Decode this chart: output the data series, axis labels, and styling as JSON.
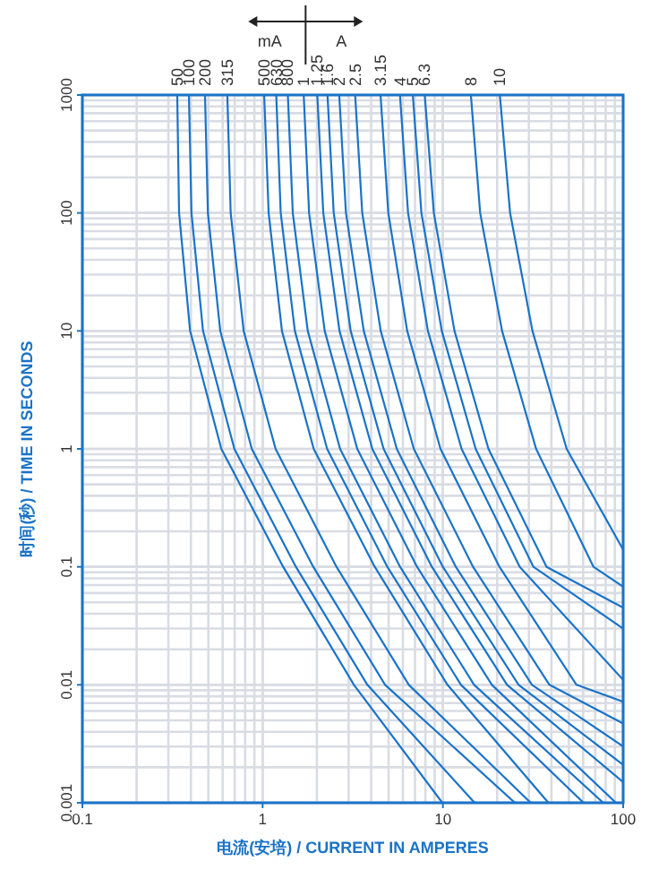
{
  "chart_data": {
    "type": "line",
    "xlabel": "电流(安培) / CURRENT IN AMPERES",
    "ylabel": "时间(秒) / TIME IN SECONDS",
    "log": "xy",
    "grid": true,
    "xlim": [
      0.1,
      100
    ],
    "ylim": [
      0.001,
      1000
    ],
    "xticks": [
      0.1,
      1,
      10,
      100
    ],
    "yticks": [
      0.001,
      0.01,
      0.1,
      1,
      10,
      100,
      1000
    ],
    "annotations": [
      "mA",
      "A"
    ],
    "series": [
      {
        "name": "50",
        "color": "#1a73c8",
        "x": [
          0.336,
          0.344,
          0.396,
          0.59,
          1.3,
          3.21,
          9.93
        ],
        "values": [
          1000,
          100,
          10,
          1,
          0.1,
          0.01,
          0.001
        ]
      },
      {
        "name": "100",
        "color": "#1a73c8",
        "x": [
          0.39,
          0.403,
          0.467,
          0.697,
          1.53,
          3.81,
          15.0
        ],
        "values": [
          1000,
          100,
          10,
          1,
          0.1,
          0.01,
          0.001
        ]
      },
      {
        "name": "200",
        "color": "#1a73c8",
        "x": [
          0.479,
          0.497,
          0.582,
          0.871,
          1.91,
          4.78,
          25.1
        ],
        "values": [
          1000,
          100,
          10,
          1,
          0.1,
          0.01,
          0.001
        ]
      },
      {
        "name": "315",
        "color": "#1a73c8",
        "x": [
          0.637,
          0.665,
          0.785,
          1.18,
          2.57,
          6.47,
          30.7
        ],
        "values": [
          1000,
          100,
          10,
          1,
          0.1,
          0.01,
          0.001
        ]
      },
      {
        "name": "500",
        "color": "#1a73c8",
        "x": [
          1.02,
          1.08,
          1.28,
          1.92,
          4.19,
          10.6,
          38.5
        ],
        "values": [
          1000,
          100,
          10,
          1,
          0.1,
          0.01,
          0.001
        ]
      },
      {
        "name": "630",
        "color": "#1a73c8",
        "x": [
          1.19,
          1.26,
          1.51,
          2.28,
          4.92,
          12.6,
          60.3
        ],
        "values": [
          1000,
          100,
          10,
          1,
          0.1,
          0.01,
          0.001
        ]
      },
      {
        "name": "800",
        "color": "#1a73c8",
        "x": [
          1.38,
          1.47,
          1.78,
          2.69,
          5.79,
          14.9,
          77.6
        ],
        "values": [
          1000,
          100,
          10,
          1,
          0.1,
          0.01,
          0.001
        ]
      },
      {
        "name": "1",
        "color": "#1a73c8",
        "x": [
          1.69,
          1.81,
          2.21,
          3.35,
          7.19,
          18.7,
          91.2
        ],
        "values": [
          1000,
          100,
          10,
          1,
          0.1,
          0.01,
          0.001
        ]
      },
      {
        "name": "1.25",
        "color": "#1a73c8",
        "x": [
          2.01,
          2.17,
          2.67,
          4.06,
          8.69,
          22.7,
          100
        ],
        "values": [
          1000,
          100,
          10,
          1,
          0.1,
          0.01,
          0.0015
        ]
      },
      {
        "name": "1.6",
        "color": "#1a73c8",
        "x": [
          2.29,
          2.48,
          3.08,
          4.69,
          10.0,
          26.3,
          100
        ],
        "values": [
          1000,
          100,
          10,
          1,
          0.1,
          0.01,
          0.0021
        ]
      },
      {
        "name": "2",
        "color": "#1a73c8",
        "x": [
          2.66,
          2.9,
          3.64,
          5.55,
          11.8,
          31.2,
          100
        ],
        "values": [
          1000,
          100,
          10,
          1,
          0.1,
          0.01,
          0.003
        ]
      },
      {
        "name": "2.5",
        "color": "#1a73c8",
        "x": [
          3.26,
          3.57,
          4.52,
          6.9,
          14.7,
          39.0,
          100
        ],
        "values": [
          1000,
          100,
          10,
          1,
          0.1,
          0.01,
          0.0047
        ]
      },
      {
        "name": "3.15",
        "color": "#1a73c8",
        "x": [
          4.51,
          4.98,
          6.34,
          9.7,
          20.6,
          55.1,
          100
        ],
        "values": [
          1000,
          100,
          10,
          1,
          0.1,
          0.01,
          0.0072
        ]
      },
      {
        "name": "4",
        "color": "#1a73c8",
        "x": [
          5.78,
          6.41,
          8.26,
          12.7,
          26.7,
          100
        ],
        "values": [
          1000,
          100,
          10,
          1,
          0.1,
          0.011
        ]
      },
      {
        "name": "5",
        "color": "#1a73c8",
        "x": [
          6.81,
          7.6,
          9.86,
          15.2,
          31.8,
          100
        ],
        "values": [
          1000,
          100,
          10,
          1,
          0.1,
          0.03
        ]
      },
      {
        "name": "6.3",
        "color": "#1a73c8",
        "x": [
          7.93,
          8.91,
          11.6,
          17.9,
          37.6,
          100
        ],
        "values": [
          1000,
          100,
          10,
          1,
          0.1,
          0.045
        ]
      },
      {
        "name": "8",
        "color": "#1a73c8",
        "x": [
          14.3,
          16.1,
          21.3,
          32.9,
          68.5,
          100
        ],
        "values": [
          1000,
          100,
          10,
          1,
          0.1,
          0.068
        ]
      },
      {
        "name": "10",
        "color": "#1a73c8",
        "x": [
          20.7,
          23.6,
          31.4,
          48.6,
          100
        ],
        "values": [
          1000,
          100,
          10,
          1,
          0.14
        ]
      }
    ]
  }
}
